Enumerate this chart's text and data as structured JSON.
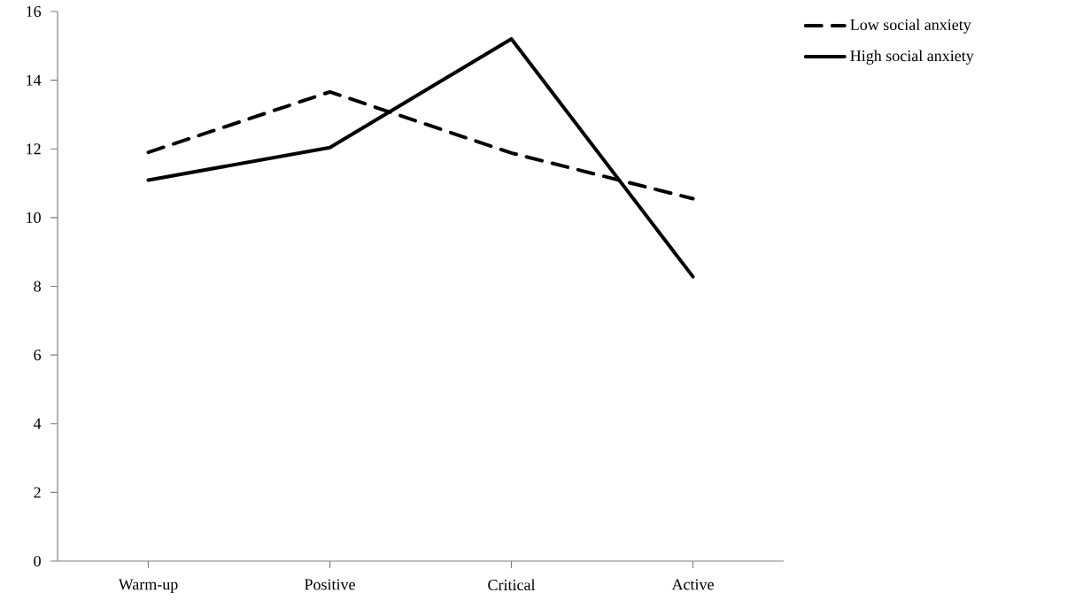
{
  "chart_data": {
    "type": "line",
    "categories": [
      "Warm-up",
      "Positive",
      "Critical",
      "Active"
    ],
    "series": [
      {
        "name": "Low social anxiety",
        "color": "#000000",
        "line_style": "dashed",
        "values": [
          11.9,
          13.66,
          11.88,
          10.55
        ]
      },
      {
        "name": "High social anxiety",
        "color": "#000000",
        "line_style": "solid",
        "values": [
          11.09,
          12.04,
          15.2,
          8.28
        ]
      }
    ],
    "ylim": [
      0,
      16
    ],
    "yticks": [
      0,
      2,
      4,
      6,
      8,
      10,
      12,
      14,
      16
    ],
    "grid": false,
    "legend": "top right",
    "marker": "none"
  }
}
